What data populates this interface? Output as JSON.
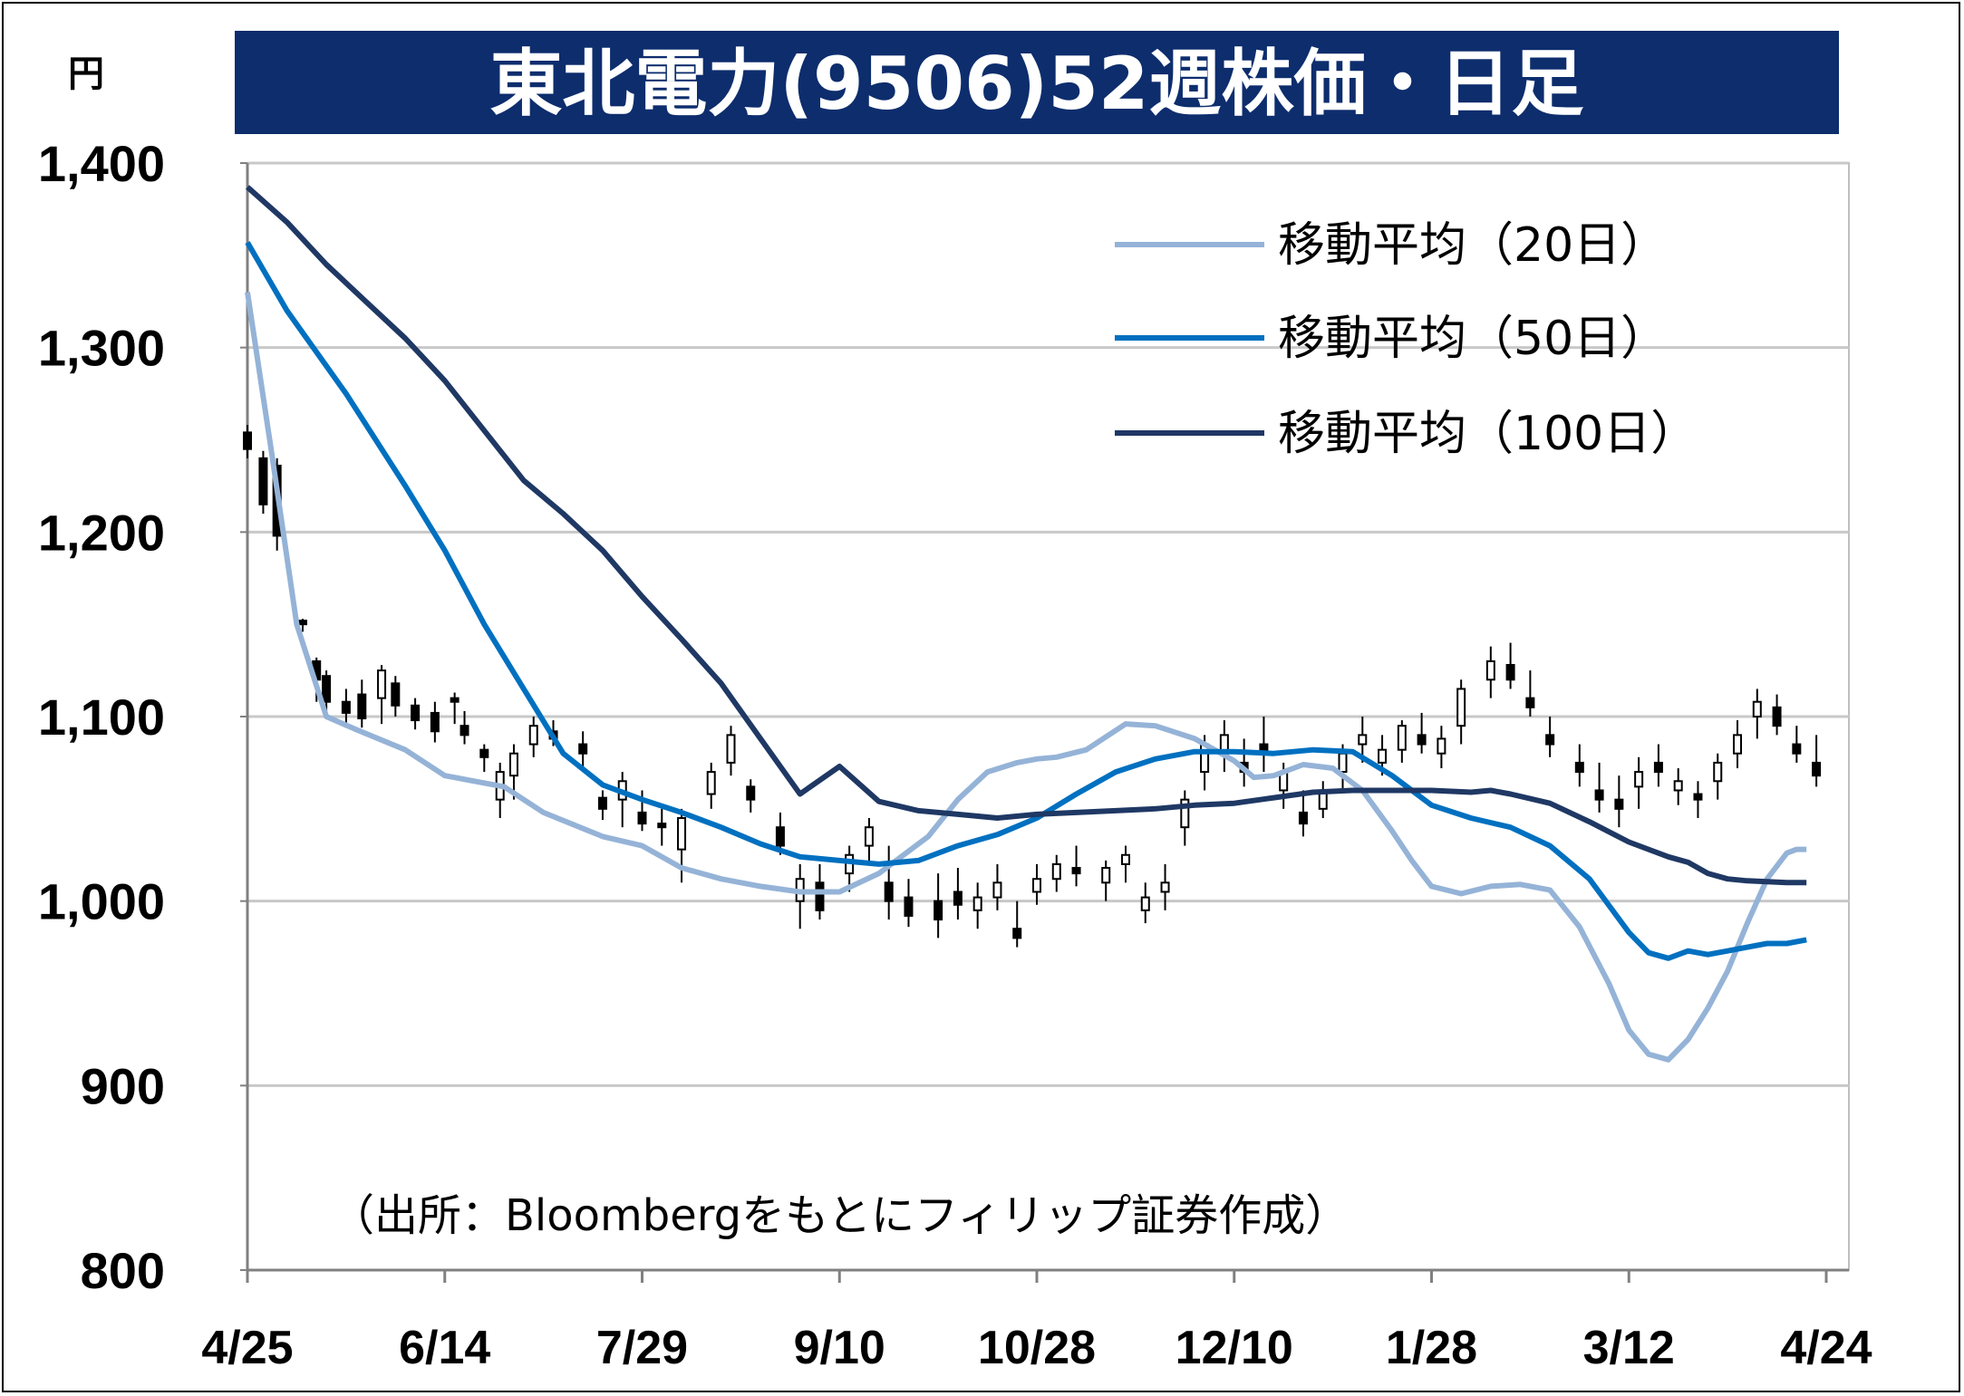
{
  "chart_data": {
    "type": "line",
    "title": "東北電力(9506)52週株価・日足",
    "unit_label": "円",
    "source_note": "（出所：Bloombergをもとにフィリップ証券作成）",
    "ylim": [
      800,
      1400
    ],
    "yticks": [
      800,
      900,
      1000,
      1100,
      1200,
      1300,
      1400
    ],
    "ytick_labels": [
      "800",
      "900",
      "1,000",
      "1,100",
      "1,200",
      "1,300",
      "1,400"
    ],
    "xtick_labels": [
      "4/25",
      "6/14",
      "7/29",
      "9/10",
      "10/28",
      "12/10",
      "1/28",
      "3/12",
      "4/24"
    ],
    "grid": true,
    "legend_position": "top-right",
    "series": [
      {
        "name": "移動平均（20日）",
        "color": "#95b3d7",
        "points": [
          [
            0,
            1330
          ],
          [
            0.12,
            1245
          ],
          [
            0.25,
            1150
          ],
          [
            0.4,
            1100
          ],
          [
            0.55,
            1093
          ],
          [
            0.8,
            1082
          ],
          [
            1,
            1068
          ],
          [
            1.3,
            1062
          ],
          [
            1.5,
            1048
          ],
          [
            1.8,
            1035
          ],
          [
            2,
            1030
          ],
          [
            2.2,
            1018
          ],
          [
            2.4,
            1012
          ],
          [
            2.6,
            1008
          ],
          [
            2.8,
            1005
          ],
          [
            3,
            1005
          ],
          [
            3.2,
            1015
          ],
          [
            3.45,
            1035
          ],
          [
            3.6,
            1055
          ],
          [
            3.75,
            1070
          ],
          [
            3.9,
            1075
          ],
          [
            4,
            1077
          ],
          [
            4.1,
            1078
          ],
          [
            4.25,
            1082
          ],
          [
            4.45,
            1096
          ],
          [
            4.6,
            1095
          ],
          [
            4.8,
            1088
          ],
          [
            5,
            1076
          ],
          [
            5.1,
            1067
          ],
          [
            5.2,
            1068
          ],
          [
            5.35,
            1074
          ],
          [
            5.5,
            1072
          ],
          [
            5.65,
            1060
          ],
          [
            5.8,
            1038
          ],
          [
            5.9,
            1022
          ],
          [
            6,
            1008
          ],
          [
            6.15,
            1004
          ],
          [
            6.3,
            1008
          ],
          [
            6.45,
            1009
          ],
          [
            6.6,
            1006
          ],
          [
            6.75,
            986
          ],
          [
            6.9,
            955
          ],
          [
            7,
            930
          ],
          [
            7.1,
            917
          ],
          [
            7.2,
            914
          ],
          [
            7.3,
            925
          ],
          [
            7.4,
            942
          ],
          [
            7.5,
            962
          ],
          [
            7.6,
            988
          ],
          [
            7.7,
            1012
          ],
          [
            7.8,
            1026
          ],
          [
            7.85,
            1028
          ],
          [
            7.9,
            1028
          ]
        ]
      },
      {
        "name": "移動平均（50日）",
        "color": "#0070c0",
        "points": [
          [
            0,
            1357
          ],
          [
            0.2,
            1320
          ],
          [
            0.5,
            1275
          ],
          [
            0.8,
            1225
          ],
          [
            1,
            1190
          ],
          [
            1.2,
            1150
          ],
          [
            1.4,
            1115
          ],
          [
            1.6,
            1080
          ],
          [
            1.8,
            1063
          ],
          [
            2,
            1055
          ],
          [
            2.2,
            1048
          ],
          [
            2.4,
            1040
          ],
          [
            2.6,
            1031
          ],
          [
            2.8,
            1024
          ],
          [
            3,
            1022
          ],
          [
            3.2,
            1020
          ],
          [
            3.4,
            1022
          ],
          [
            3.6,
            1030
          ],
          [
            3.8,
            1036
          ],
          [
            4,
            1045
          ],
          [
            4.2,
            1058
          ],
          [
            4.4,
            1070
          ],
          [
            4.6,
            1077
          ],
          [
            4.8,
            1081
          ],
          [
            5,
            1081
          ],
          [
            5.2,
            1080
          ],
          [
            5.4,
            1082
          ],
          [
            5.6,
            1081
          ],
          [
            5.8,
            1068
          ],
          [
            6,
            1052
          ],
          [
            6.2,
            1045
          ],
          [
            6.4,
            1040
          ],
          [
            6.6,
            1030
          ],
          [
            6.8,
            1012
          ],
          [
            7,
            983
          ],
          [
            7.1,
            972
          ],
          [
            7.2,
            969
          ],
          [
            7.3,
            973
          ],
          [
            7.4,
            971
          ],
          [
            7.5,
            973
          ],
          [
            7.6,
            975
          ],
          [
            7.7,
            977
          ],
          [
            7.8,
            977
          ],
          [
            7.9,
            979
          ]
        ]
      },
      {
        "name": "移動平均（100日）",
        "color": "#1f3864",
        "points": [
          [
            0,
            1387
          ],
          [
            0.2,
            1368
          ],
          [
            0.4,
            1345
          ],
          [
            0.6,
            1325
          ],
          [
            0.8,
            1305
          ],
          [
            1,
            1282
          ],
          [
            1.2,
            1255
          ],
          [
            1.4,
            1228
          ],
          [
            1.6,
            1210
          ],
          [
            1.8,
            1190
          ],
          [
            2,
            1165
          ],
          [
            2.2,
            1142
          ],
          [
            2.4,
            1118
          ],
          [
            2.6,
            1088
          ],
          [
            2.8,
            1058
          ],
          [
            3,
            1073
          ],
          [
            3.0001,
            1073
          ],
          [
            3.2,
            1054
          ],
          [
            3.4,
            1049
          ],
          [
            3.6,
            1047
          ],
          [
            3.8,
            1045
          ],
          [
            4,
            1047
          ],
          [
            4.2,
            1048
          ],
          [
            4.4,
            1049
          ],
          [
            4.6,
            1050
          ],
          [
            4.8,
            1052
          ],
          [
            5,
            1053
          ],
          [
            5.2,
            1056
          ],
          [
            5.4,
            1059
          ],
          [
            5.6,
            1060
          ],
          [
            5.8,
            1060
          ],
          [
            6,
            1060
          ],
          [
            6.2,
            1059
          ],
          [
            6.3,
            1060
          ],
          [
            6.4,
            1058
          ],
          [
            6.6,
            1053
          ],
          [
            6.8,
            1043
          ],
          [
            7,
            1032
          ],
          [
            7.2,
            1024
          ],
          [
            7.3,
            1021
          ],
          [
            7.4,
            1015
          ],
          [
            7.5,
            1012
          ],
          [
            7.6,
            1011
          ],
          [
            7.8,
            1010
          ],
          [
            7.9,
            1010
          ]
        ]
      }
    ],
    "candles": [
      [
        0,
        1254,
        1258,
        1240,
        1245
      ],
      [
        0.08,
        1240,
        1244,
        1210,
        1215
      ],
      [
        0.15,
        1236,
        1240,
        1190,
        1198
      ],
      [
        0.28,
        1152,
        1153,
        1146,
        1150
      ],
      [
        0.35,
        1130,
        1132,
        1108,
        1120
      ],
      [
        0.4,
        1122,
        1125,
        1102,
        1108
      ],
      [
        0.5,
        1108,
        1115,
        1095,
        1102
      ],
      [
        0.58,
        1112,
        1120,
        1094,
        1099
      ],
      [
        0.68,
        1110,
        1128,
        1096,
        1125
      ],
      [
        0.75,
        1118,
        1122,
        1100,
        1106
      ],
      [
        0.85,
        1106,
        1110,
        1093,
        1098
      ],
      [
        0.95,
        1102,
        1108,
        1086,
        1092
      ],
      [
        1.05,
        1110,
        1113,
        1096,
        1108
      ],
      [
        1.1,
        1095,
        1103,
        1085,
        1090
      ],
      [
        1.2,
        1082,
        1085,
        1070,
        1078
      ],
      [
        1.28,
        1055,
        1075,
        1045,
        1070
      ],
      [
        1.35,
        1068,
        1085,
        1055,
        1080
      ],
      [
        1.45,
        1085,
        1100,
        1078,
        1095
      ],
      [
        1.55,
        1092,
        1098,
        1084,
        1088
      ],
      [
        1.7,
        1085,
        1092,
        1072,
        1080
      ],
      [
        1.8,
        1056,
        1060,
        1044,
        1050
      ],
      [
        1.9,
        1055,
        1070,
        1040,
        1065
      ],
      [
        2,
        1048,
        1060,
        1038,
        1042
      ],
      [
        2.1,
        1042,
        1050,
        1030,
        1040
      ],
      [
        2.2,
        1028,
        1050,
        1010,
        1045
      ],
      [
        2.35,
        1058,
        1075,
        1050,
        1070
      ],
      [
        2.45,
        1075,
        1095,
        1068,
        1090
      ],
      [
        2.55,
        1062,
        1066,
        1048,
        1055
      ],
      [
        2.7,
        1040,
        1048,
        1025,
        1030
      ],
      [
        2.8,
        1000,
        1020,
        985,
        1012
      ],
      [
        2.9,
        1010,
        1020,
        990,
        995
      ],
      [
        3.05,
        1015,
        1030,
        1005,
        1025
      ],
      [
        3.15,
        1030,
        1045,
        1020,
        1040
      ],
      [
        3.25,
        1010,
        1030,
        990,
        1000
      ],
      [
        3.35,
        1002,
        1012,
        986,
        992
      ],
      [
        3.5,
        1000,
        1015,
        980,
        990
      ],
      [
        3.6,
        1005,
        1018,
        990,
        998
      ],
      [
        3.7,
        995,
        1010,
        985,
        1002
      ],
      [
        3.8,
        1002,
        1020,
        995,
        1010
      ],
      [
        3.9,
        985,
        1000,
        975,
        980
      ],
      [
        4,
        1005,
        1020,
        998,
        1012
      ],
      [
        4.1,
        1012,
        1025,
        1005,
        1020
      ],
      [
        4.2,
        1018,
        1030,
        1008,
        1015
      ],
      [
        4.35,
        1010,
        1022,
        1000,
        1018
      ],
      [
        4.45,
        1020,
        1030,
        1010,
        1025
      ],
      [
        4.55,
        995,
        1010,
        988,
        1002
      ],
      [
        4.65,
        1005,
        1020,
        995,
        1010
      ],
      [
        4.75,
        1040,
        1060,
        1030,
        1055
      ],
      [
        4.85,
        1070,
        1090,
        1060,
        1085
      ],
      [
        4.95,
        1080,
        1098,
        1070,
        1090
      ],
      [
        5.05,
        1075,
        1088,
        1062,
        1070
      ],
      [
        5.15,
        1085,
        1100,
        1070,
        1080
      ],
      [
        5.25,
        1060,
        1075,
        1050,
        1070
      ],
      [
        5.35,
        1048,
        1060,
        1035,
        1042
      ],
      [
        5.45,
        1050,
        1065,
        1045,
        1060
      ],
      [
        5.55,
        1070,
        1085,
        1060,
        1080
      ],
      [
        5.65,
        1085,
        1100,
        1075,
        1090
      ],
      [
        5.75,
        1075,
        1090,
        1068,
        1082
      ],
      [
        5.85,
        1082,
        1098,
        1075,
        1095
      ],
      [
        5.95,
        1090,
        1102,
        1080,
        1085
      ],
      [
        6.05,
        1080,
        1095,
        1072,
        1088
      ],
      [
        6.15,
        1095,
        1120,
        1085,
        1115
      ],
      [
        6.3,
        1120,
        1138,
        1110,
        1130
      ],
      [
        6.4,
        1128,
        1140,
        1115,
        1120
      ],
      [
        6.5,
        1110,
        1125,
        1100,
        1105
      ],
      [
        6.6,
        1090,
        1100,
        1078,
        1085
      ],
      [
        6.75,
        1075,
        1085,
        1062,
        1070
      ],
      [
        6.85,
        1060,
        1075,
        1048,
        1055
      ],
      [
        6.95,
        1055,
        1068,
        1040,
        1050
      ],
      [
        7.05,
        1062,
        1078,
        1050,
        1070
      ],
      [
        7.15,
        1075,
        1085,
        1062,
        1070
      ],
      [
        7.25,
        1060,
        1072,
        1052,
        1065
      ],
      [
        7.35,
        1058,
        1065,
        1045,
        1055
      ],
      [
        7.45,
        1065,
        1080,
        1055,
        1075
      ],
      [
        7.55,
        1080,
        1098,
        1072,
        1090
      ],
      [
        7.65,
        1100,
        1115,
        1088,
        1108
      ],
      [
        7.75,
        1105,
        1112,
        1090,
        1095
      ],
      [
        7.85,
        1085,
        1095,
        1075,
        1080
      ],
      [
        7.95,
        1075,
        1090,
        1062,
        1068
      ]
    ],
    "x_note": "x in index units where each xtick label index (0..8) is one tick"
  }
}
